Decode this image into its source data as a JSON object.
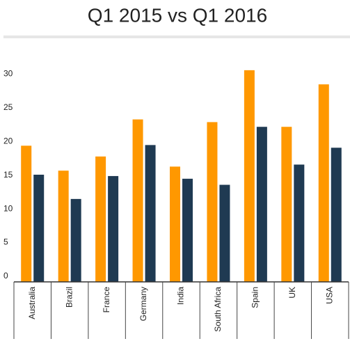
{
  "chart_data": {
    "type": "bar",
    "title": "Q1 2015 vs Q1 2016",
    "categories": [
      "Australia",
      "Brazil",
      "France",
      "Germany",
      "India",
      "South Africa",
      "Spain",
      "UK",
      "USA"
    ],
    "series": [
      {
        "color": "#ff9800",
        "values": [
          20.2,
          16.5,
          18.6,
          24.1,
          17.1,
          23.7,
          31.4,
          23.0,
          29.3
        ]
      },
      {
        "color": "#1f3a52",
        "values": [
          15.9,
          12.3,
          15.7,
          20.3,
          15.3,
          14.4,
          23.0,
          17.4,
          19.9
        ]
      }
    ],
    "ylim": [
      0,
      35
    ],
    "yticks": [
      0,
      5,
      10,
      15,
      20,
      25,
      30
    ]
  }
}
